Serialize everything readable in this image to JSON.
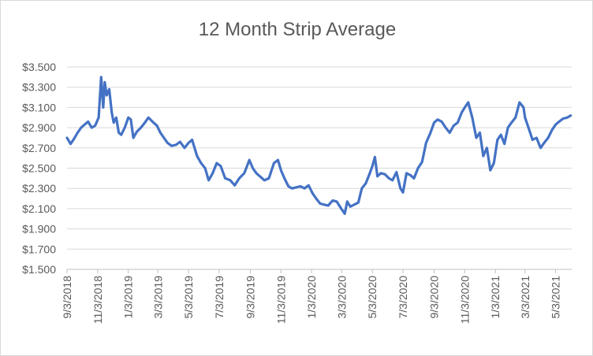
{
  "chart_data": {
    "type": "line",
    "title": "12 Month Strip Average",
    "xlabel": "",
    "ylabel": "",
    "ylim": [
      1.5,
      3.5
    ],
    "y_ticks": [
      1.5,
      1.7,
      1.9,
      2.1,
      2.3,
      2.5,
      2.7,
      2.9,
      3.1,
      3.3,
      3.5
    ],
    "y_tick_labels": [
      "$1.500",
      "$1.700",
      "$1.900",
      "$2.100",
      "$2.300",
      "$2.500",
      "$2.700",
      "$2.900",
      "$3.100",
      "$3.300",
      "$3.500"
    ],
    "x_range": [
      "2018-09-03",
      "2021-06-04"
    ],
    "x_ticks": [
      "2018-09-03",
      "2018-11-03",
      "2019-01-03",
      "2019-03-03",
      "2019-05-03",
      "2019-07-03",
      "2019-09-03",
      "2019-11-03",
      "2020-01-03",
      "2020-03-03",
      "2020-05-03",
      "2020-07-03",
      "2020-09-03",
      "2020-11-03",
      "2021-01-03",
      "2021-03-03",
      "2021-05-03"
    ],
    "x_tick_labels": [
      "9/3/2018",
      "11/3/2018",
      "1/3/2019",
      "3/3/2019",
      "5/3/2019",
      "7/3/2019",
      "9/3/2019",
      "11/3/2019",
      "1/3/2020",
      "3/3/2020",
      "5/3/2020",
      "7/3/2020",
      "9/3/2020",
      "11/3/2020",
      "1/3/2021",
      "3/3/2021",
      "5/3/2021"
    ],
    "grid": true,
    "legend": "none",
    "series": [
      {
        "color": "#4472c4",
        "x": [
          "2018-09-03",
          "2018-09-10",
          "2018-09-17",
          "2018-09-24",
          "2018-10-01",
          "2018-10-08",
          "2018-10-15",
          "2018-10-22",
          "2018-10-29",
          "2018-11-05",
          "2018-11-10",
          "2018-11-14",
          "2018-11-17",
          "2018-11-21",
          "2018-11-26",
          "2018-12-01",
          "2018-12-05",
          "2018-12-10",
          "2018-12-15",
          "2018-12-20",
          "2018-12-27",
          "2019-01-03",
          "2019-01-08",
          "2019-01-13",
          "2019-01-20",
          "2019-01-28",
          "2019-02-05",
          "2019-02-12",
          "2019-02-20",
          "2019-03-01",
          "2019-03-08",
          "2019-03-15",
          "2019-03-22",
          "2019-03-30",
          "2019-04-08",
          "2019-04-16",
          "2019-04-25",
          "2019-05-03",
          "2019-05-10",
          "2019-05-20",
          "2019-05-28",
          "2019-06-05",
          "2019-06-12",
          "2019-06-20",
          "2019-06-28",
          "2019-07-06",
          "2019-07-15",
          "2019-07-25",
          "2019-08-03",
          "2019-08-12",
          "2019-08-22",
          "2019-09-01",
          "2019-09-08",
          "2019-09-15",
          "2019-09-22",
          "2019-10-01",
          "2019-10-10",
          "2019-10-20",
          "2019-10-28",
          "2019-11-03",
          "2019-11-10",
          "2019-11-18",
          "2019-11-25",
          "2019-12-03",
          "2019-12-12",
          "2019-12-20",
          "2019-12-28",
          "2020-01-05",
          "2020-01-12",
          "2020-01-20",
          "2020-01-28",
          "2020-02-05",
          "2020-02-14",
          "2020-02-22",
          "2020-03-02",
          "2020-03-09",
          "2020-03-14",
          "2020-03-20",
          "2020-03-28",
          "2020-04-05",
          "2020-04-12",
          "2020-04-20",
          "2020-04-28",
          "2020-05-03",
          "2020-05-08",
          "2020-05-13",
          "2020-05-20",
          "2020-05-28",
          "2020-06-05",
          "2020-06-12",
          "2020-06-20",
          "2020-06-28",
          "2020-07-03",
          "2020-07-10",
          "2020-07-18",
          "2020-07-25",
          "2020-08-02",
          "2020-08-10",
          "2020-08-18",
          "2020-08-26",
          "2020-09-03",
          "2020-09-10",
          "2020-09-18",
          "2020-09-26",
          "2020-10-04",
          "2020-10-12",
          "2020-10-20",
          "2020-10-28",
          "2020-11-03",
          "2020-11-10",
          "2020-11-18",
          "2020-11-26",
          "2020-12-03",
          "2020-12-10",
          "2020-12-17",
          "2020-12-24",
          "2020-12-31",
          "2021-01-07",
          "2021-01-14",
          "2021-01-21",
          "2021-01-28",
          "2021-02-04",
          "2021-02-12",
          "2021-02-20",
          "2021-02-28",
          "2021-03-03",
          "2021-03-10",
          "2021-03-18",
          "2021-03-26",
          "2021-04-03",
          "2021-04-10",
          "2021-04-18",
          "2021-04-26",
          "2021-05-03",
          "2021-05-10",
          "2021-05-18",
          "2021-05-26",
          "2021-06-02"
        ],
        "values": [
          2.8,
          2.74,
          2.79,
          2.85,
          2.9,
          2.93,
          2.96,
          2.9,
          2.92,
          3.0,
          3.4,
          3.1,
          3.35,
          3.22,
          3.28,
          3.05,
          2.95,
          3.0,
          2.85,
          2.83,
          2.9,
          3.0,
          2.98,
          2.8,
          2.86,
          2.9,
          2.95,
          3.0,
          2.96,
          2.92,
          2.85,
          2.8,
          2.75,
          2.72,
          2.73,
          2.76,
          2.7,
          2.75,
          2.78,
          2.62,
          2.55,
          2.5,
          2.38,
          2.45,
          2.55,
          2.52,
          2.4,
          2.38,
          2.33,
          2.4,
          2.45,
          2.58,
          2.5,
          2.45,
          2.42,
          2.38,
          2.4,
          2.55,
          2.58,
          2.48,
          2.4,
          2.32,
          2.3,
          2.31,
          2.32,
          2.3,
          2.33,
          2.25,
          2.2,
          2.15,
          2.14,
          2.13,
          2.18,
          2.17,
          2.1,
          2.05,
          2.17,
          2.12,
          2.14,
          2.16,
          2.3,
          2.35,
          2.45,
          2.52,
          2.61,
          2.42,
          2.45,
          2.44,
          2.4,
          2.38,
          2.46,
          2.3,
          2.26,
          2.45,
          2.43,
          2.4,
          2.5,
          2.56,
          2.75,
          2.84,
          2.95,
          2.98,
          2.96,
          2.9,
          2.85,
          2.92,
          2.95,
          3.05,
          3.1,
          3.15,
          3.0,
          2.8,
          2.85,
          2.62,
          2.7,
          2.48,
          2.55,
          2.78,
          2.83,
          2.74,
          2.9,
          2.95,
          3.0,
          3.15,
          3.1,
          3.0,
          2.9,
          2.78,
          2.8,
          2.7,
          2.75,
          2.8,
          2.88,
          2.93,
          2.96,
          2.99,
          3.0,
          3.02
        ]
      }
    ]
  }
}
